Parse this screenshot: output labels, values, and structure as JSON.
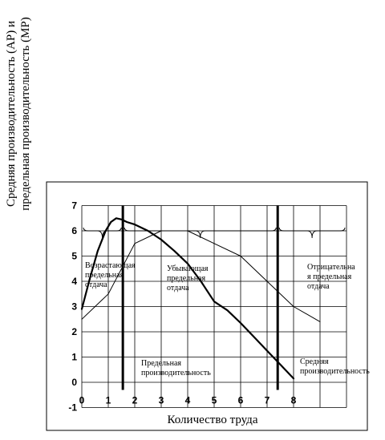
{
  "chart_data": {
    "type": "line",
    "title": "",
    "ylabel_lines": [
      "Средняя производительность (AP) и",
      "предельная производительность (MP)"
    ],
    "xlabel": "Количество труда",
    "xlim": [
      0,
      10
    ],
    "ylim": [
      -1,
      7
    ],
    "x_ticks": [
      "0",
      "1",
      "2",
      "3",
      "4",
      "5",
      "6",
      "7",
      "8"
    ],
    "y_ticks": [
      "-1",
      "0",
      "1",
      "2",
      "3",
      "4",
      "5",
      "6",
      "7"
    ],
    "grid": true,
    "series": [
      {
        "key": "mp",
        "x": [
          0,
          0.3,
          0.6,
          0.9,
          1.1,
          1.3,
          1.5,
          1.7,
          2,
          2.5,
          3,
          3.5,
          4,
          4.5,
          5,
          5.5,
          6,
          6.5,
          7,
          7.5,
          8
        ],
        "y": [
          2.9,
          4.1,
          5.2,
          6.0,
          6.35,
          6.5,
          6.45,
          6.35,
          6.25,
          6.0,
          5.65,
          5.2,
          4.7,
          4.0,
          3.2,
          2.85,
          2.35,
          1.8,
          1.25,
          0.7,
          0.15
        ]
      },
      {
        "key": "ap",
        "x": [
          0,
          1,
          2,
          3,
          4,
          5,
          6,
          7,
          8,
          9
        ],
        "y": [
          2.5,
          3.5,
          5.5,
          6.0,
          6.0,
          5.5,
          5.0,
          4.0,
          3.0,
          2.4
        ]
      }
    ],
    "vertical_lines": [
      1.55,
      7.4
    ],
    "zones": [
      {
        "from": 1.55,
        "to": 7.4,
        "y": 6.0,
        "label_lines": [
          "Убывающая",
          "предельная",
          "отдача"
        ]
      },
      {
        "from": 7.4,
        "to": 10,
        "y": 6.0,
        "label_lines": [
          "Отрицательна",
          "я предельная",
          "отдача"
        ]
      },
      {
        "from": 0,
        "to": 1.55,
        "y": 6.0,
        "label_lines": [
          "Возрастающая",
          "предельная",
          "отдача"
        ]
      }
    ],
    "curve_labels": [
      {
        "lines": [
          "Предельная",
          "производительность"
        ]
      },
      {
        "lines": [
          "Средняя",
          "производительность"
        ]
      }
    ]
  }
}
